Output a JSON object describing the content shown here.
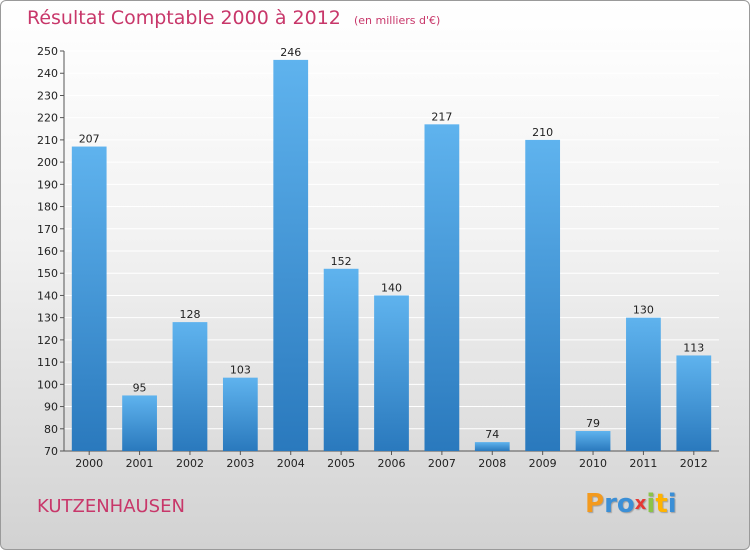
{
  "header": {
    "title": "Résultat Comptable 2000 à 2012",
    "subtitle": "(en milliers d'€)"
  },
  "footer": {
    "commune": "KUTZENHAUSEN",
    "logo_letters": [
      {
        "char": "P",
        "color": "#f39a1e"
      },
      {
        "char": "r",
        "color": "#3b8fd6"
      },
      {
        "char": "o",
        "color": "#3b8fd6"
      },
      {
        "char": "x",
        "color": "#e53935"
      },
      {
        "char": "i",
        "color": "#8bc34a"
      },
      {
        "char": "t",
        "color": "#ffb300"
      },
      {
        "char": "i",
        "color": "#3b8fd6"
      }
    ]
  },
  "colors": {
    "title": "#c8376a",
    "bar_top": "#5fb3ee",
    "bar_bottom": "#2a79bd",
    "grid": "#ffffff"
  },
  "chart_data": {
    "type": "bar",
    "title": "Résultat Comptable 2000 à 2012",
    "subtitle": "(en milliers d'€)",
    "xlabel": "",
    "ylabel": "",
    "categories": [
      "2000",
      "2001",
      "2002",
      "2003",
      "2004",
      "2005",
      "2006",
      "2007",
      "2008",
      "2009",
      "2010",
      "2011",
      "2012"
    ],
    "values": [
      207,
      95,
      128,
      103,
      246,
      152,
      140,
      217,
      74,
      210,
      79,
      130,
      113
    ],
    "ylim": [
      70,
      250
    ],
    "yticks": [
      70,
      80,
      90,
      100,
      110,
      120,
      130,
      140,
      150,
      160,
      170,
      180,
      190,
      200,
      210,
      220,
      230,
      240,
      250
    ],
    "grid": true,
    "legend": "none"
  }
}
